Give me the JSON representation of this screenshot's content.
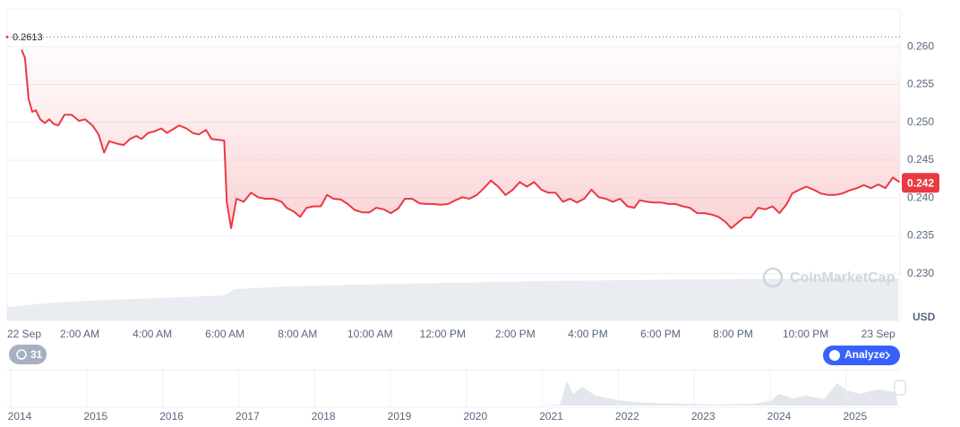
{
  "chart_data": {
    "type": "line",
    "color": "#ea3943",
    "x": [
      0.4,
      0.49,
      0.59,
      0.69,
      0.79,
      0.91,
      1.04,
      1.16,
      1.28,
      1.41,
      1.58,
      1.78,
      1.98,
      2.15,
      2.35,
      2.52,
      2.67,
      2.81,
      3.01,
      3.21,
      3.38,
      3.56,
      3.7,
      3.88,
      4.05,
      4.25,
      4.4,
      4.54,
      4.74,
      4.94,
      5.11,
      5.28,
      5.48,
      5.63,
      5.98,
      6.05,
      6.17,
      6.32,
      6.52,
      6.72,
      6.91,
      7.11,
      7.33,
      7.56,
      7.7,
      7.9,
      8.07,
      8.25,
      8.44,
      8.64,
      8.81,
      8.99,
      9.19,
      9.38,
      9.58,
      9.78,
      9.98,
      10.17,
      10.37,
      10.57,
      10.77,
      10.96,
      11.16,
      11.36,
      11.56,
      11.75,
      11.95,
      12.15,
      12.35,
      12.54,
      12.74,
      12.94,
      13.14,
      13.33,
      13.53,
      13.73,
      13.93,
      14.12,
      14.32,
      14.52,
      14.72,
      14.91,
      15.11,
      15.31,
      15.51,
      15.7,
      15.9,
      16.1,
      16.3,
      16.49,
      16.69,
      16.89,
      17.09,
      17.28,
      17.43,
      17.63,
      17.83,
      18.02,
      18.22,
      18.42,
      18.62,
      18.81,
      19.01,
      19.21,
      19.41,
      19.6,
      19.8,
      19.95,
      20.1,
      20.3,
      20.49,
      20.69,
      20.89,
      21.09,
      21.28,
      21.48,
      21.63,
      21.83,
      22.02,
      22.22,
      22.42,
      22.62,
      22.81,
      23.01,
      23.21,
      23.41,
      23.6,
      23.8,
      24.0,
      24.2,
      24.4,
      24.59
    ],
    "values": [
      0.2596,
      0.2585,
      0.2531,
      0.2514,
      0.2516,
      0.2504,
      0.2499,
      0.2504,
      0.2498,
      0.2496,
      0.251,
      0.251,
      0.2502,
      0.2504,
      0.2496,
      0.2484,
      0.246,
      0.2475,
      0.2472,
      0.247,
      0.2478,
      0.2482,
      0.2478,
      0.2486,
      0.2488,
      0.2492,
      0.2486,
      0.249,
      0.2496,
      0.2492,
      0.2486,
      0.2484,
      0.249,
      0.2478,
      0.2476,
      0.2395,
      0.236,
      0.2399,
      0.2395,
      0.2407,
      0.2401,
      0.2399,
      0.2399,
      0.2395,
      0.2387,
      0.2382,
      0.2375,
      0.2387,
      0.2389,
      0.2389,
      0.2404,
      0.2399,
      0.2398,
      0.2392,
      0.2384,
      0.2381,
      0.2381,
      0.2387,
      0.2385,
      0.238,
      0.2386,
      0.2399,
      0.2399,
      0.2393,
      0.2392,
      0.2392,
      0.2391,
      0.2392,
      0.2397,
      0.2401,
      0.2399,
      0.2404,
      0.2413,
      0.2423,
      0.2415,
      0.2404,
      0.2411,
      0.2421,
      0.2415,
      0.2421,
      0.2411,
      0.2407,
      0.2407,
      0.2395,
      0.2399,
      0.2394,
      0.2399,
      0.2411,
      0.2401,
      0.2399,
      0.2395,
      0.2399,
      0.2389,
      0.2387,
      0.2397,
      0.2395,
      0.2394,
      0.2394,
      0.2392,
      0.2392,
      0.2389,
      0.2387,
      0.238,
      0.238,
      0.2378,
      0.2375,
      0.2368,
      0.236,
      0.2366,
      0.2374,
      0.2374,
      0.2387,
      0.2385,
      0.2389,
      0.238,
      0.2392,
      0.2406,
      0.2411,
      0.2415,
      0.2411,
      0.2406,
      0.2404,
      0.2404,
      0.2406,
      0.241,
      0.2413,
      0.2417,
      0.2413,
      0.2418,
      0.2413,
      0.2427,
      0.2421
    ],
    "xlim": [
      0,
      24.6
    ],
    "xticks": [
      {
        "value": 0,
        "label": "22 Sep"
      },
      {
        "value": 2,
        "label": "2:00 AM"
      },
      {
        "value": 4,
        "label": "4:00 AM"
      },
      {
        "value": 6,
        "label": "6:00 AM"
      },
      {
        "value": 8,
        "label": "8:00 AM"
      },
      {
        "value": 10,
        "label": "10:00 AM"
      },
      {
        "value": 12,
        "label": "12:00 PM"
      },
      {
        "value": 14,
        "label": "2:00 PM"
      },
      {
        "value": 16,
        "label": "4:00 PM"
      },
      {
        "value": 18,
        "label": "6:00 PM"
      },
      {
        "value": 20,
        "label": "8:00 PM"
      },
      {
        "value": 22,
        "label": "10:00 PM"
      },
      {
        "value": 24,
        "label": "23 Sep"
      }
    ],
    "ylim": [
      0.2238,
      0.265
    ],
    "yticks": [
      {
        "value": 0.23,
        "label": "0.230"
      },
      {
        "value": 0.235,
        "label": "0.235"
      },
      {
        "value": 0.24,
        "label": "0.240"
      },
      {
        "value": 0.245,
        "label": "0.245"
      },
      {
        "value": 0.25,
        "label": "0.250"
      },
      {
        "value": 0.255,
        "label": "0.255"
      },
      {
        "value": 0.26,
        "label": "0.260"
      }
    ],
    "grid": true,
    "y_unit": "USD",
    "high": 0.2613,
    "last_price": 0.242,
    "watermark": "CoinMarketCap",
    "badge": "31",
    "button": "Analyze",
    "navigator_years": [
      "2014",
      "2015",
      "2016",
      "2017",
      "2018",
      "2019",
      "2020",
      "2021",
      "2022",
      "2023",
      "2024",
      "2025"
    ]
  }
}
